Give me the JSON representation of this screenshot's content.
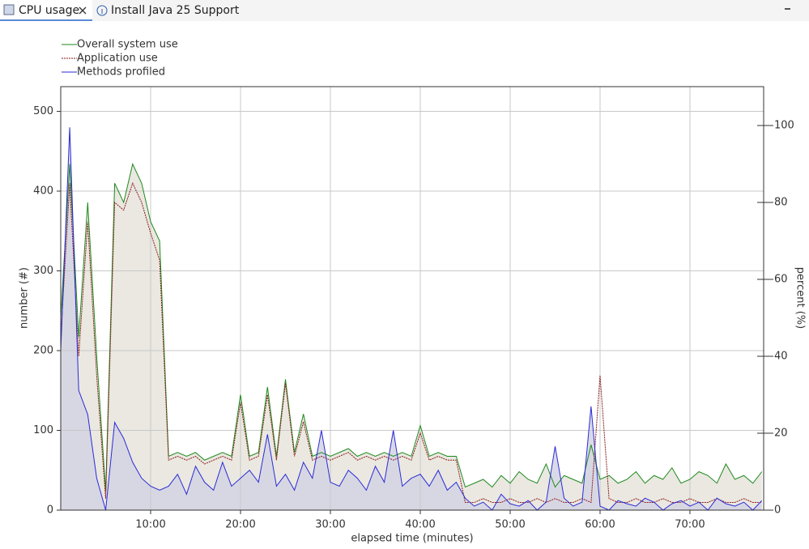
{
  "tabs": [
    "CPU usage",
    "Install Java 25 Support"
  ],
  "chart_data": {
    "type": "line",
    "xlabel": "elapsed time (minutes)",
    "ylabel": "number (#)",
    "y2label": "percent (%)",
    "x": [
      0,
      1,
      2,
      3,
      4,
      5,
      6,
      7,
      8,
      9,
      10,
      11,
      12,
      13,
      14,
      15,
      16,
      17,
      18,
      19,
      20,
      21,
      22,
      23,
      24,
      25,
      26,
      27,
      28,
      29,
      30,
      31,
      32,
      33,
      34,
      35,
      36,
      37,
      38,
      39,
      40,
      41,
      42,
      43,
      44,
      45,
      46,
      47,
      48,
      49,
      50,
      51,
      52,
      53,
      54,
      55,
      56,
      57,
      58,
      59,
      60,
      61,
      62,
      63,
      64,
      65,
      66,
      67,
      68,
      69,
      70,
      71,
      72,
      73,
      74,
      75,
      76,
      77,
      78
    ],
    "series": [
      {
        "name": "Overall system use",
        "color": "#1e8a1e",
        "axis": "y2",
        "fill": "#e6e4dc",
        "values": [
          50,
          90,
          45,
          80,
          40,
          5,
          85,
          80,
          90,
          85,
          75,
          70,
          14,
          15,
          14,
          15,
          13,
          14,
          15,
          14,
          30,
          14,
          15,
          32,
          14,
          34,
          15,
          25,
          14,
          15,
          14,
          15,
          16,
          14,
          15,
          14,
          15,
          14,
          15,
          14,
          22,
          14,
          15,
          14,
          14,
          6,
          7,
          8,
          6,
          9,
          7,
          10,
          8,
          7,
          12,
          6,
          9,
          8,
          7,
          17,
          8,
          9,
          7,
          8,
          10,
          7,
          9,
          8,
          11,
          7,
          8,
          10,
          9,
          7,
          12,
          8,
          9,
          7,
          10
        ]
      },
      {
        "name": "Application use",
        "color": "#8b1a1a",
        "axis": "y2",
        "dashed": true,
        "values": [
          45,
          85,
          40,
          75,
          35,
          3,
          80,
          78,
          85,
          80,
          72,
          65,
          13,
          14,
          13,
          14,
          12,
          13,
          14,
          13,
          28,
          13,
          14,
          30,
          13,
          33,
          14,
          23,
          13,
          14,
          13,
          14,
          15,
          13,
          14,
          13,
          14,
          13,
          14,
          13,
          20,
          13,
          14,
          13,
          13,
          2,
          2,
          3,
          2,
          2,
          3,
          2,
          2,
          3,
          2,
          3,
          2,
          2,
          3,
          2,
          35,
          3,
          2,
          2,
          3,
          2,
          2,
          3,
          2,
          2,
          3,
          2,
          2,
          3,
          2,
          2,
          3,
          2,
          2
        ]
      },
      {
        "name": "Methods profiled",
        "color": "#2a2ad8",
        "fill": "#d3d3e3",
        "values": [
          200,
          480,
          150,
          120,
          40,
          0,
          110,
          90,
          60,
          40,
          30,
          25,
          30,
          45,
          20,
          55,
          35,
          25,
          60,
          30,
          40,
          50,
          35,
          95,
          30,
          45,
          25,
          60,
          40,
          100,
          35,
          30,
          50,
          40,
          25,
          55,
          35,
          100,
          30,
          40,
          45,
          30,
          50,
          25,
          35,
          15,
          5,
          10,
          0,
          20,
          8,
          5,
          12,
          0,
          10,
          80,
          15,
          5,
          10,
          130,
          5,
          0,
          12,
          8,
          5,
          15,
          10,
          0,
          8,
          12,
          5,
          10,
          0,
          15,
          8,
          5,
          10,
          0,
          12
        ]
      }
    ],
    "xlim": [
      0,
      78.2
    ],
    "xticks": [
      {
        "value": 10,
        "label": "10:00"
      },
      {
        "value": 20,
        "label": "20:00"
      },
      {
        "value": 30,
        "label": "30:00"
      },
      {
        "value": 40,
        "label": "40:00"
      },
      {
        "value": 50,
        "label": "50:00"
      },
      {
        "value": 60,
        "label": "60:00"
      },
      {
        "value": 70,
        "label": "70:00"
      }
    ],
    "ylim": [
      0,
      531
    ],
    "yticks": [
      0,
      100,
      200,
      300,
      400,
      500
    ],
    "y2lim": [
      0,
      110.1
    ],
    "y2ticks": [
      0,
      20,
      40,
      60,
      80,
      100
    ],
    "grid": true
  }
}
